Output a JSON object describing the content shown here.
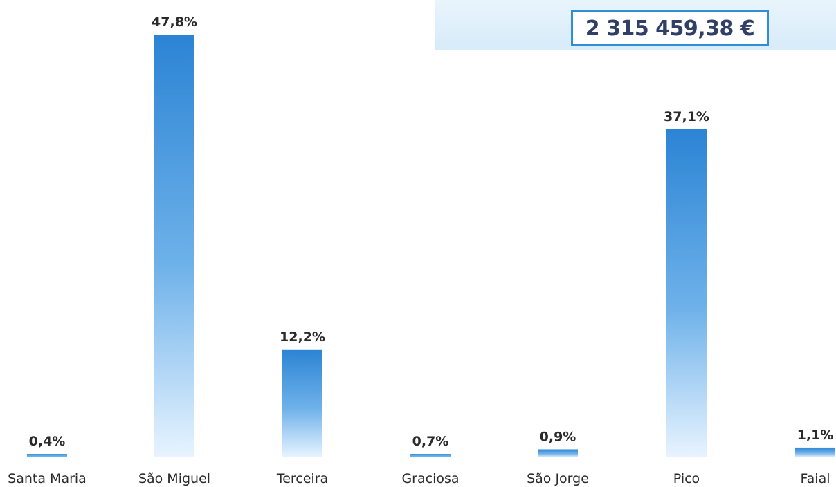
{
  "total": {
    "label": "2 315 459,38 €"
  },
  "colors": {
    "bar_top": "#2b84d4",
    "bar_bottom": "#dcefff",
    "band": "#dcedf9",
    "border": "#2e8fd8"
  },
  "chart_data": {
    "type": "bar",
    "categories": [
      "Santa Maria",
      "São Miguel",
      "Terceira",
      "Graciosa",
      "São Jorge",
      "Pico",
      "Faial"
    ],
    "values": [
      0.4,
      47.8,
      12.2,
      0.7,
      0.9,
      37.1,
      1.1
    ],
    "data_labels": [
      "0,4%",
      "47,8%",
      "12,2%",
      "0,7%",
      "0,9%",
      "37,1%",
      "1,1%"
    ],
    "ylim": [
      0,
      47.8
    ],
    "grid": false,
    "legend": "none"
  }
}
